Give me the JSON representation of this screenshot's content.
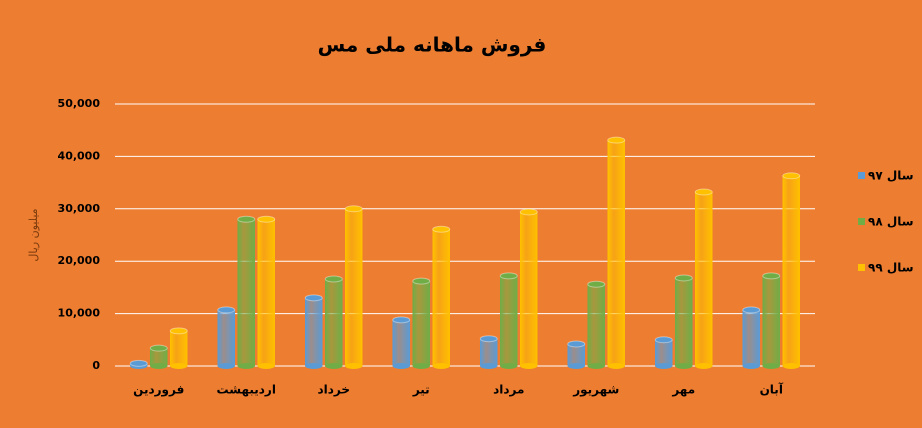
{
  "chart_data": {
    "type": "bar",
    "title": "فروش ماهانه ملی مس",
    "y_label": "میلیون ریال",
    "categories": [
      "فروردین",
      "اردیبهشت",
      "خرداد",
      "تیر",
      "مرداد",
      "شهریور",
      "مهر",
      "آبان"
    ],
    "series": [
      {
        "name": "سال ۹۷",
        "color": "#5b9bd5",
        "values": [
          500,
          10700,
          13000,
          8800,
          5200,
          4200,
          5000,
          10700
        ]
      },
      {
        "name": "سال ۹۸",
        "color": "#70ad47",
        "values": [
          3400,
          28000,
          16600,
          16200,
          17200,
          15600,
          16800,
          17200
        ]
      },
      {
        "name": "سال ۹۹",
        "color": "#ffc000",
        "values": [
          6700,
          28000,
          30000,
          26100,
          29400,
          43100,
          33200,
          36300
        ]
      }
    ],
    "ylim": [
      0,
      50000
    ],
    "yticks": [
      0,
      {
        "value": 10000,
        "label": "10,000"
      },
      {
        "value": 20000,
        "label": "20,000"
      },
      {
        "value": 30000,
        "label": "30,000"
      },
      {
        "value": 40000,
        "label": "40,000"
      },
      {
        "value": 50000,
        "label": "50,000"
      }
    ],
    "grid": true,
    "legend": "right"
  }
}
